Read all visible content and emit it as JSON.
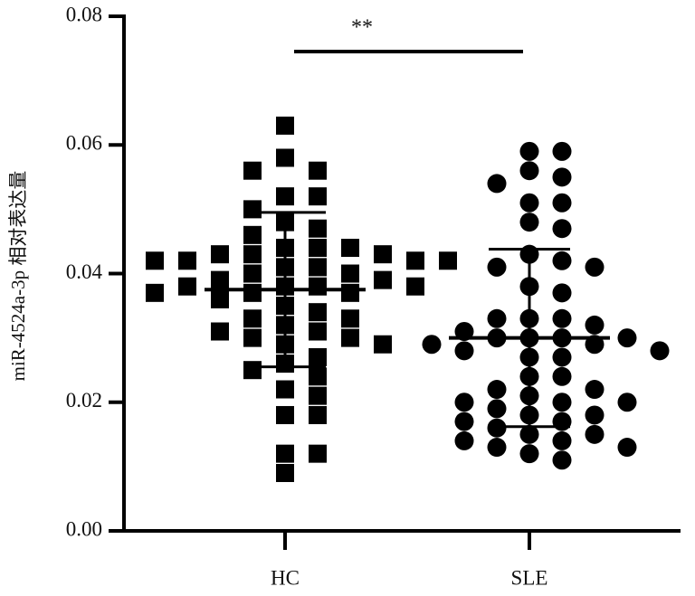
{
  "chart_data": {
    "type": "strip",
    "categories": [
      "HC",
      "SLE"
    ],
    "ylabel": "miR-4524a-3p 相对表达量",
    "ylim": [
      0,
      0.08
    ],
    "yticks": [
      {
        "value": 0,
        "label": "0.00"
      },
      {
        "value": 0.02,
        "label": "0.02"
      },
      {
        "value": 0.04,
        "label": "0.04"
      },
      {
        "value": 0.06,
        "label": "0.06"
      },
      {
        "value": 0.08,
        "label": "0.08"
      }
    ],
    "annotation": "**",
    "series": [
      {
        "name": "HC",
        "color": "#000000",
        "marker": "square",
        "mean": 0.0375,
        "sd": 0.012,
        "values": [
          0.063,
          0.058,
          0.056,
          0.056,
          0.052,
          0.052,
          0.05,
          0.048,
          0.047,
          0.046,
          0.044,
          0.044,
          0.044,
          0.043,
          0.043,
          0.043,
          0.042,
          0.042,
          0.042,
          0.042,
          0.041,
          0.041,
          0.04,
          0.04,
          0.039,
          0.039,
          0.038,
          0.038,
          0.038,
          0.038,
          0.037,
          0.037,
          0.037,
          0.036,
          0.035,
          0.034,
          0.033,
          0.033,
          0.032,
          0.031,
          0.031,
          0.03,
          0.03,
          0.029,
          0.029,
          0.027,
          0.026,
          0.025,
          0.024,
          0.022,
          0.021,
          0.018,
          0.018,
          0.012,
          0.012,
          0.009
        ]
      },
      {
        "name": "SLE",
        "color": "#000000",
        "marker": "circle",
        "mean": 0.03,
        "sd": 0.0138,
        "values": [
          0.059,
          0.059,
          0.056,
          0.055,
          0.054,
          0.051,
          0.051,
          0.048,
          0.047,
          0.043,
          0.042,
          0.041,
          0.041,
          0.038,
          0.037,
          0.033,
          0.033,
          0.033,
          0.032,
          0.031,
          0.03,
          0.03,
          0.03,
          0.03,
          0.029,
          0.029,
          0.028,
          0.028,
          0.027,
          0.027,
          0.024,
          0.024,
          0.022,
          0.022,
          0.021,
          0.02,
          0.02,
          0.02,
          0.019,
          0.018,
          0.018,
          0.017,
          0.017,
          0.016,
          0.015,
          0.015,
          0.014,
          0.014,
          0.013,
          0.013,
          0.012,
          0.011
        ]
      }
    ]
  }
}
